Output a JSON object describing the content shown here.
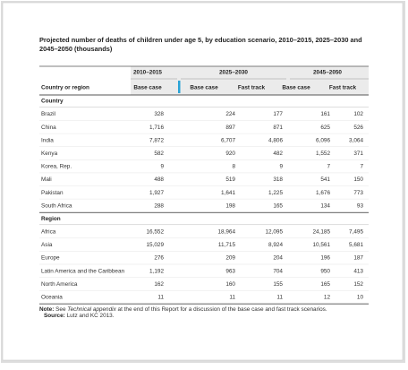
{
  "title": "Projected number of deaths of children under age 5, by education scenario, 2010–2015, 2025–2030 and 2045–2050 (thousands)",
  "table": {
    "column_groups": [
      "2010–2015",
      "2025–2030",
      "2045–2050"
    ],
    "columns": [
      "Country or region",
      "Base case",
      "Base case",
      "Fast track",
      "Base case",
      "Fast track"
    ],
    "sections": [
      {
        "label": "Country",
        "rows": [
          [
            "Brazil",
            "328",
            "224",
            "177",
            "161",
            "102"
          ],
          [
            "China",
            "1,716",
            "897",
            "871",
            "625",
            "526"
          ],
          [
            "India",
            "7,872",
            "6,707",
            "4,806",
            "6,096",
            "3,064"
          ],
          [
            "Kenya",
            "582",
            "920",
            "482",
            "1,552",
            "371"
          ],
          [
            "Korea, Rep.",
            "9",
            "8",
            "9",
            "7",
            "7"
          ],
          [
            "Mali",
            "488",
            "519",
            "318",
            "541",
            "150"
          ],
          [
            "Pakistan",
            "1,927",
            "1,641",
            "1,225",
            "1,676",
            "773"
          ],
          [
            "South Africa",
            "288",
            "198",
            "165",
            "134",
            "93"
          ]
        ]
      },
      {
        "label": "Region",
        "rows": [
          [
            "Africa",
            "16,552",
            "18,964",
            "12,095",
            "24,185",
            "7,495"
          ],
          [
            "Asia",
            "15,029",
            "11,715",
            "8,924",
            "10,561",
            "5,681"
          ],
          [
            "Europe",
            "276",
            "209",
            "204",
            "196",
            "187"
          ],
          [
            "Latin America and the Caribbean",
            "1,192",
            "963",
            "704",
            "950",
            "413"
          ],
          [
            "North America",
            "162",
            "160",
            "155",
            "165",
            "152"
          ],
          [
            "Oceania",
            "11",
            "11",
            "11",
            "12",
            "10"
          ]
        ]
      }
    ]
  },
  "note": {
    "label": "Note:",
    "before": "See ",
    "italic": "Technical appendix",
    "after": " at the end of this Report for a discussion of the base case and fast track scenarios."
  },
  "source": {
    "label": "Source:",
    "text": "Lutz and KC 2013."
  }
}
